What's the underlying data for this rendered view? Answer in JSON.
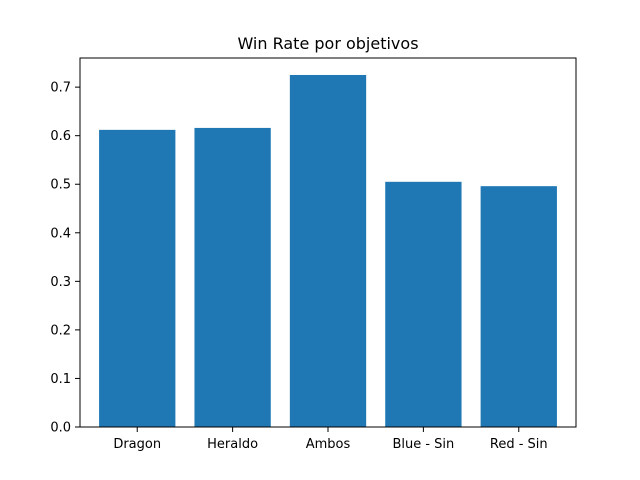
{
  "colors": {
    "bar": "#1f77b4",
    "axis": "#000000",
    "background": "#ffffff"
  },
  "chart_data": {
    "type": "bar",
    "title": "Win Rate por objetivos",
    "xlabel": "",
    "ylabel": "",
    "categories": [
      "Dragon",
      "Heraldo",
      "Ambos",
      "Blue - Sin",
      "Red - Sin"
    ],
    "values": [
      0.612,
      0.616,
      0.725,
      0.505,
      0.496
    ],
    "ylim": [
      0,
      0.76
    ],
    "yticks": [
      0.0,
      0.1,
      0.2,
      0.3,
      0.4,
      0.5,
      0.6,
      0.7
    ],
    "ytick_labels": [
      "0.0",
      "0.1",
      "0.2",
      "0.3",
      "0.4",
      "0.5",
      "0.6",
      "0.7"
    ],
    "grid": false,
    "legend": "none"
  }
}
